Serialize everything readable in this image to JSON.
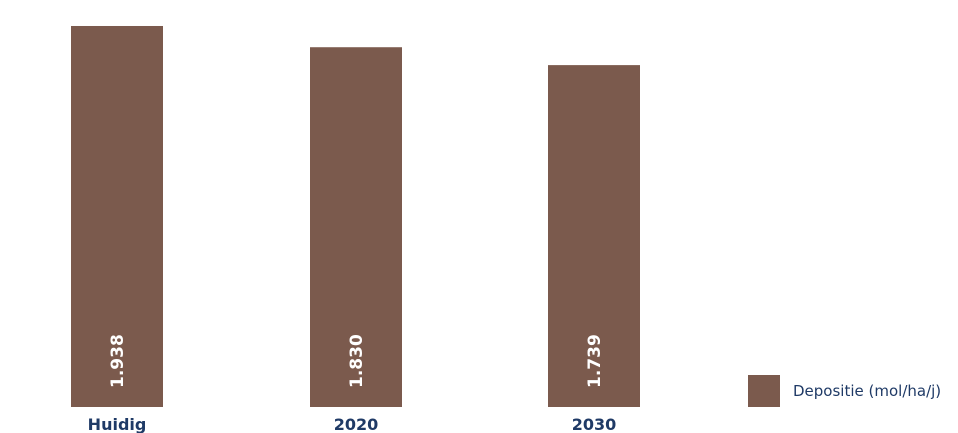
{
  "chart_data": {
    "type": "bar",
    "title": "",
    "xlabel": "",
    "ylabel": "",
    "categories": [
      "Huidig",
      "2020",
      "2030"
    ],
    "series": [
      {
        "name": "Depositie (mol/ha/j)",
        "values": [
          1938,
          1830,
          1739
        ],
        "labels": [
          "1.938",
          "1.830",
          "1.739"
        ],
        "color": "#7b5a4d"
      }
    ],
    "ylim": [
      0,
      2000
    ],
    "grid": false,
    "legend_position": "bottom-right"
  },
  "colors": {
    "bar": "#7b5a4d",
    "category_text": "#1f3a66",
    "data_label": "#ffffff"
  }
}
